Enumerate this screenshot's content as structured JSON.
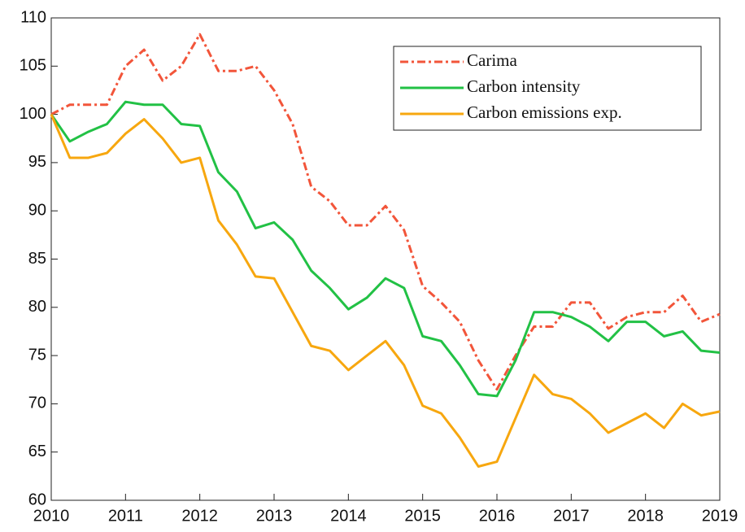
{
  "chart_data": {
    "type": "line",
    "x": [
      2010,
      2010.25,
      2010.5,
      2010.75,
      2011,
      2011.25,
      2011.5,
      2011.75,
      2012,
      2012.25,
      2012.5,
      2012.75,
      2013,
      2013.25,
      2013.5,
      2013.75,
      2014,
      2014.25,
      2014.5,
      2014.75,
      2015,
      2015.25,
      2015.5,
      2015.75,
      2016,
      2016.25,
      2016.5,
      2016.75,
      2017,
      2017.25,
      2017.5,
      2017.75,
      2018,
      2018.25,
      2018.5,
      2018.75,
      2019
    ],
    "series": [
      {
        "name": "Carima",
        "color": "#f2553a",
        "dash": "dashdot",
        "values": [
          100,
          101,
          101,
          101,
          105,
          106.7,
          103.5,
          105,
          108.3,
          104.5,
          104.5,
          105,
          102.5,
          99,
          92.5,
          91,
          88.5,
          88.5,
          90.5,
          88,
          82.2,
          80.5,
          78.5,
          74.5,
          71.5,
          75,
          78,
          78,
          80.5,
          80.5,
          77.8,
          79,
          79.5,
          79.5,
          81.2,
          78.5,
          79.3
        ]
      },
      {
        "name": "Carbon intensity",
        "color": "#22c145",
        "values": [
          100,
          97.2,
          98.2,
          99,
          101.3,
          101,
          101,
          99,
          98.8,
          94,
          92,
          88.2,
          88.8,
          87,
          83.8,
          82,
          79.8,
          81,
          83,
          82,
          77,
          76.5,
          74,
          71,
          70.8,
          74.5,
          79.5,
          79.5,
          79,
          78,
          76.5,
          78.5,
          78.5,
          77,
          77.5,
          75.5,
          75.3
        ]
      },
      {
        "name": "Carbon emissions exp.",
        "color": "#f7a70f",
        "values": [
          100,
          95.5,
          95.5,
          96,
          98,
          99.5,
          97.5,
          95,
          95.5,
          89,
          86.5,
          83.2,
          83,
          79.5,
          76,
          75.5,
          73.5,
          75,
          76.5,
          74,
          69.8,
          69,
          66.5,
          63.5,
          64,
          68.5,
          73,
          71,
          70.5,
          69,
          67,
          68,
          69,
          67.5,
          70,
          68.8,
          69.2
        ]
      }
    ],
    "xlim": [
      2010,
      2019
    ],
    "xticks": [
      2010,
      2011,
      2012,
      2013,
      2014,
      2015,
      2016,
      2017,
      2018,
      2019
    ],
    "ylim": [
      60,
      110
    ],
    "yticks": [
      60,
      65,
      70,
      75,
      80,
      85,
      90,
      95,
      100,
      105,
      110
    ],
    "legend": "upper right"
  }
}
